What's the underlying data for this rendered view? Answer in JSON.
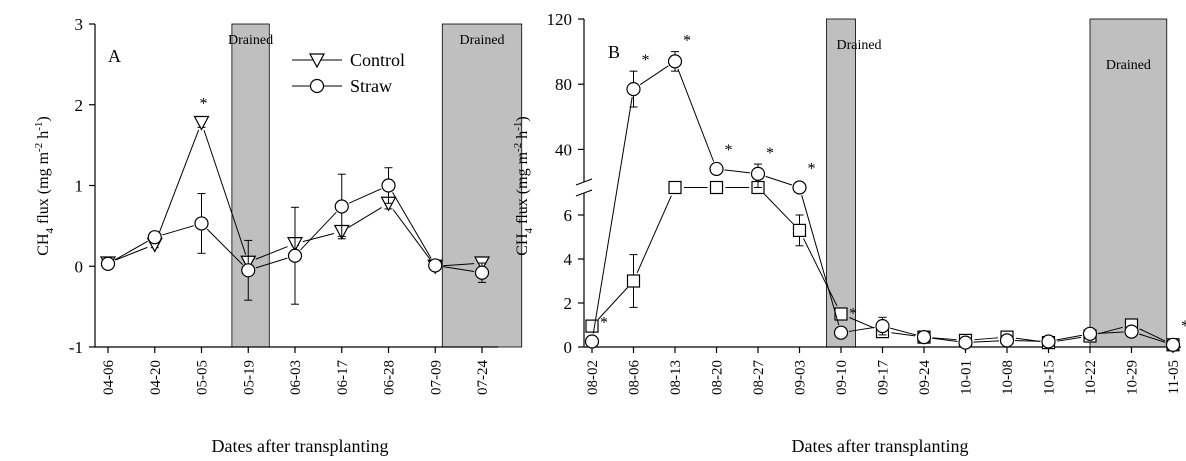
{
  "chart_data": [
    {
      "type": "line",
      "panel_label": "A",
      "xlabel": "Dates after transplanting",
      "ylabel_main": "CH",
      "ylabel_sub": "4",
      "ylabel_rest": " flux (mg m",
      "ylabel_sup1": "-2",
      "ylabel_mid": " h",
      "ylabel_sup2": "-1",
      "ylabel_end": ")",
      "categories": [
        "04-06",
        "04-20",
        "05-05",
        "05-19",
        "06-03",
        "06-17",
        "06-28",
        "07-09",
        "07-24"
      ],
      "ylim": [
        -1,
        3
      ],
      "yticks": [
        "-1",
        "0",
        "1",
        "2",
        "3"
      ],
      "drained_label": "Drained",
      "drained_periods": [
        [
          2.65,
          3.45
        ],
        [
          7.15,
          8.85
        ]
      ],
      "series": [
        {
          "name": "Control",
          "marker": "triangle-down",
          "values": [
            0.04,
            0.27,
            1.78,
            0.05,
            0.28,
            0.43,
            0.78,
            0.0,
            0.04
          ],
          "errors": [
            0.04,
            0.04,
            0.06,
            0.05,
            0.02,
            0.06,
            0.07,
            0.03,
            0.05
          ],
          "sig": [
            false,
            false,
            true,
            false,
            false,
            false,
            false,
            false,
            false
          ]
        },
        {
          "name": "Straw",
          "marker": "circle",
          "values": [
            0.03,
            0.36,
            0.53,
            -0.05,
            0.13,
            0.74,
            1.0,
            0.01,
            -0.08
          ],
          "errors": [
            0.03,
            0.04,
            0.37,
            0.37,
            0.6,
            0.4,
            0.22,
            0.04,
            0.12
          ],
          "sig": [
            false,
            false,
            false,
            false,
            false,
            false,
            false,
            false,
            false
          ]
        }
      ]
    },
    {
      "type": "line",
      "panel_label": "B",
      "xlabel": "Dates after transplanting",
      "ylabel_main": "CH",
      "ylabel_sub": "4",
      "ylabel_rest": " flux (mg m",
      "ylabel_sup1": "-2",
      "ylabel_mid": " h",
      "ylabel_sup2": "-1",
      "ylabel_end": ")",
      "categories": [
        "08-02",
        "08-06",
        "08-13",
        "08-20",
        "08-27",
        "09-03",
        "09-10",
        "09-17",
        "09-24",
        "10-01",
        "10-08",
        "10-15",
        "10-22",
        "10-29",
        "11-05"
      ],
      "y_axis_broken": true,
      "ylim_lower": [
        0,
        7
      ],
      "ylim_upper": [
        20,
        120
      ],
      "yticks_lower": [
        "0",
        "2",
        "4",
        "6"
      ],
      "yticks_upper": [
        "40",
        "80",
        "120"
      ],
      "drained_label": "Drained",
      "drained_periods": [
        [
          5.65,
          6.35
        ],
        [
          12.0,
          13.85
        ]
      ],
      "series": [
        {
          "name": "Control",
          "marker": "square",
          "values": [
            0.95,
            3.0,
            17,
            14,
            13,
            5.3,
            1.5,
            0.7,
            0.45,
            0.3,
            0.45,
            0.2,
            0.5,
            1.0,
            0.1
          ],
          "errors": [
            0.1,
            1.2,
            0.5,
            0.5,
            0.5,
            0.7,
            0.1,
            0.1,
            0.05,
            0.05,
            0.05,
            0.05,
            0.05,
            0.05,
            0.05
          ],
          "sig": [
            false,
            false,
            false,
            false,
            false,
            false,
            false,
            false,
            false,
            false,
            false,
            false,
            false,
            false,
            false
          ]
        },
        {
          "name": "Straw",
          "marker": "circle",
          "values": [
            0.25,
            77,
            94,
            28,
            25,
            16,
            0.65,
            0.95,
            0.45,
            0.2,
            0.3,
            0.25,
            0.6,
            0.7,
            0.1
          ],
          "errors": [
            0.1,
            11,
            6,
            2,
            6,
            1,
            0.1,
            0.4,
            0.05,
            0.05,
            0.05,
            0.05,
            0.1,
            0.05,
            0.05
          ],
          "sig": [
            true,
            true,
            true,
            true,
            true,
            true,
            true,
            false,
            false,
            false,
            false,
            false,
            false,
            false,
            true
          ]
        }
      ]
    }
  ]
}
